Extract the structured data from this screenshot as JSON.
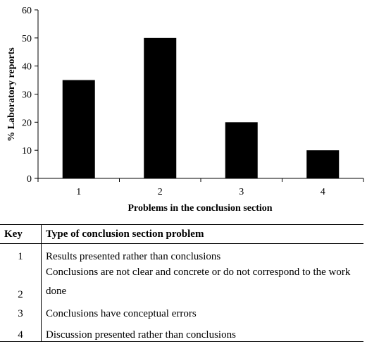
{
  "chart_data": {
    "type": "bar",
    "categories": [
      "1",
      "2",
      "3",
      "4"
    ],
    "values": [
      35,
      50,
      20,
      10
    ],
    "xlabel": "Problems in the conclusion section",
    "ylabel": "% Laboratory reports",
    "ylim": [
      0,
      60
    ],
    "yticks": [
      0,
      10,
      20,
      30,
      40,
      50,
      60
    ],
    "bar_color": "#000000",
    "grid": false
  },
  "key_table": {
    "headers": [
      "Key",
      "Type of conclusion section problem"
    ],
    "rows": [
      {
        "key": "1",
        "text": "Results presented rather than conclusions"
      },
      {
        "key": "2",
        "text": "Conclusions are not clear and concrete or do not correspond to the work done"
      },
      {
        "key": "3",
        "text": "Conclusions have conceptual errors"
      },
      {
        "key": "4",
        "text": "Discussion presented rather than conclusions"
      }
    ]
  }
}
